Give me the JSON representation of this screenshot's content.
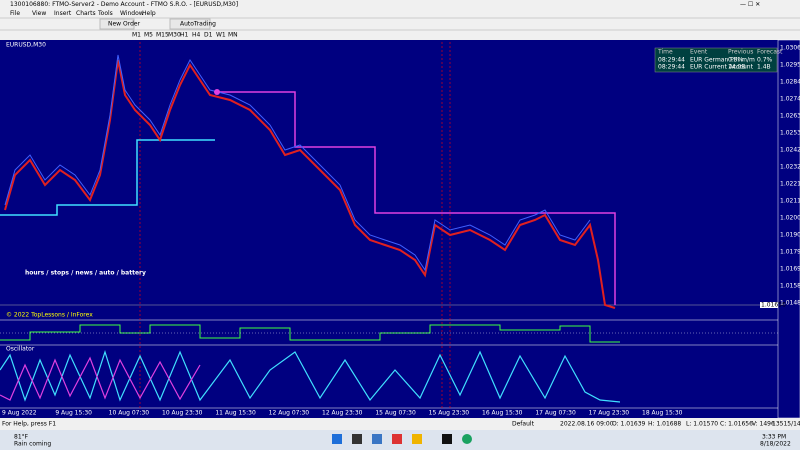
{
  "window": {
    "title": "1300106880: FTMO-Server2 - Demo Account - FTMO S.R.O. - [EURUSD,M30]"
  },
  "menu": [
    "File",
    "View",
    "Insert",
    "Charts",
    "Tools",
    "Window",
    "Help"
  ],
  "toolbar": {
    "new_order": "New Order",
    "auto_trading": "AutoTrading"
  },
  "timeframes": [
    "M1",
    "M5",
    "M15",
    "M30",
    "H1",
    "H4",
    "D1",
    "W1",
    "MN"
  ],
  "chart": {
    "symbol": "EURUSD,M30",
    "overlay": "hours / stops / news / auto / battery",
    "copyright": "© 2022 TopLessons / InForex",
    "price_labels": [
      "1.03060",
      "1.02950",
      "1.02845",
      "1.02740",
      "1.02635",
      "1.02530",
      "1.02425",
      "1.02320",
      "1.02215",
      "1.02110",
      "1.02005",
      "1.01900",
      "1.01795",
      "1.01690",
      "1.01585",
      "1.01480"
    ],
    "current_price": "1.01656",
    "time_labels": [
      "9 Aug 2022",
      "9 Aug 15:30",
      "10 Aug 07:30",
      "10 Aug 23:30",
      "11 Aug 15:30",
      "12 Aug 07:30",
      "12 Aug 23:30",
      "15 Aug 07:30",
      "15 Aug 23:30",
      "16 Aug 15:30",
      "17 Aug 07:30",
      "17 Aug 23:30",
      "18 Aug 15:30"
    ],
    "news": {
      "header": [
        "Time",
        "Event",
        "Previous",
        "Forecast"
      ],
      "rows": [
        [
          "08:29:44",
          "EUR German PPI m/m",
          "0.5%",
          "0.7%"
        ],
        [
          "08:29:44",
          "EUR Current Account",
          "14.0B",
          "1.4B"
        ]
      ]
    }
  },
  "status": [
    "For Help, press F1",
    "Default",
    "2022.08.16 09:00",
    "O: 1.01639",
    "H: 1.01688",
    "L: 1.01570",
    "C: 1.01656",
    "V: 1496",
    "13515/14 kb"
  ],
  "taskbar": {
    "weather": "81°F",
    "weather_note": "Rain coming",
    "time": "3:33 PM",
    "date": "8/18/2022"
  }
}
